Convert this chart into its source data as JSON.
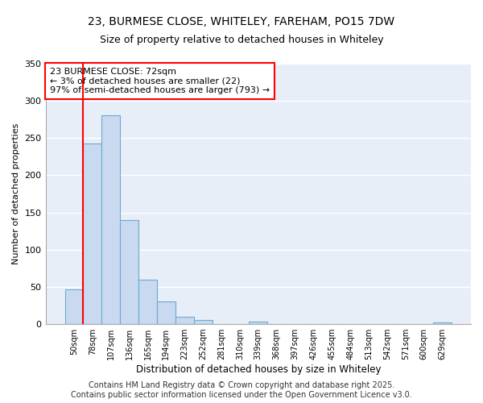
{
  "title_line1": "23, BURMESE CLOSE, WHITELEY, FAREHAM, PO15 7DW",
  "title_line2": "Size of property relative to detached houses in Whiteley",
  "xlabel": "Distribution of detached houses by size in Whiteley",
  "ylabel": "Number of detached properties",
  "categories": [
    "50sqm",
    "78sqm",
    "107sqm",
    "136sqm",
    "165sqm",
    "194sqm",
    "223sqm",
    "252sqm",
    "281sqm",
    "310sqm",
    "339sqm",
    "368sqm",
    "397sqm",
    "426sqm",
    "455sqm",
    "484sqm",
    "513sqm",
    "542sqm",
    "571sqm",
    "600sqm",
    "629sqm"
  ],
  "values": [
    47,
    243,
    281,
    140,
    60,
    30,
    10,
    6,
    0,
    0,
    3,
    0,
    0,
    0,
    0,
    0,
    0,
    0,
    0,
    0,
    2
  ],
  "bar_color": "#c8d9f0",
  "bar_edgecolor": "#6aabd2",
  "ylim": [
    0,
    350
  ],
  "yticks": [
    0,
    50,
    100,
    150,
    200,
    250,
    300,
    350
  ],
  "annotation_text": "23 BURMESE CLOSE: 72sqm\n← 3% of detached houses are smaller (22)\n97% of semi-detached houses are larger (793) →",
  "footer_line1": "Contains HM Land Registry data © Crown copyright and database right 2025.",
  "footer_line2": "Contains public sector information licensed under the Open Government Licence v3.0.",
  "background_color": "#ffffff",
  "plot_bg_color": "#e8eef8",
  "grid_color": "#ffffff",
  "title_fontsize": 10,
  "subtitle_fontsize": 9,
  "annotation_fontsize": 8,
  "footer_fontsize": 7,
  "redline_x": 0.5
}
